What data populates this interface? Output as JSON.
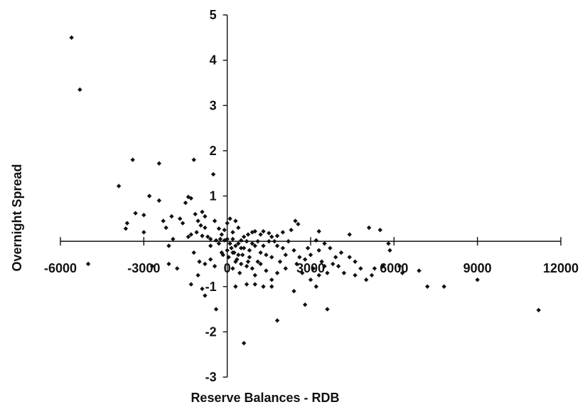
{
  "chart_data": {
    "type": "scatter",
    "title": "",
    "xlabel": "Reserve Balances - RDB",
    "ylabel": "Overnight Spread",
    "xlim": [
      -6000,
      12000
    ],
    "ylim": [
      -3,
      5
    ],
    "xticks": [
      "-6000",
      "-3000",
      "0",
      "3000",
      "6000",
      "9000",
      "12000"
    ],
    "yticks": [
      "-3",
      "-2",
      "-1",
      "0",
      "1",
      "2",
      "3",
      "4",
      "5"
    ],
    "grid": false,
    "legend": "none",
    "marker": "diamond",
    "color": "#111111",
    "points": [
      [
        -5600,
        4.5
      ],
      [
        -5300,
        3.35
      ],
      [
        -3400,
        1.8
      ],
      [
        -2450,
        1.72
      ],
      [
        -1200,
        1.8
      ],
      [
        -3900,
        1.22
      ],
      [
        -3600,
        0.4
      ],
      [
        -3650,
        0.28
      ],
      [
        -3300,
        0.62
      ],
      [
        -2800,
        1.0
      ],
      [
        -3000,
        0.58
      ],
      [
        -3000,
        0.2
      ],
      [
        -2450,
        0.9
      ],
      [
        -2300,
        0.45
      ],
      [
        -2000,
        0.55
      ],
      [
        -1700,
        0.5
      ],
      [
        -1500,
        0.85
      ],
      [
        -1400,
        0.98
      ],
      [
        -1300,
        0.95
      ],
      [
        -1150,
        0.6
      ],
      [
        -1050,
        0.45
      ],
      [
        -900,
        0.65
      ],
      [
        -800,
        0.55
      ],
      [
        -2200,
        0.3
      ],
      [
        -1600,
        0.4
      ],
      [
        -500,
        1.48
      ],
      [
        -450,
        0.45
      ],
      [
        -300,
        0.28
      ],
      [
        -200,
        0.15
      ],
      [
        -1300,
        0.15
      ],
      [
        -1100,
        0.2
      ],
      [
        -950,
        0.35
      ],
      [
        -800,
        0.3
      ],
      [
        -700,
        0.1
      ],
      [
        -600,
        0.05
      ],
      [
        -400,
        0.02
      ],
      [
        -300,
        -0.05
      ],
      [
        -250,
        0.05
      ],
      [
        -1200,
        -0.25
      ],
      [
        -1000,
        -0.45
      ],
      [
        -800,
        -0.5
      ],
      [
        -600,
        -0.4
      ],
      [
        -450,
        -0.55
      ],
      [
        -2100,
        -0.5
      ],
      [
        -1800,
        -0.6
      ],
      [
        -1300,
        -0.95
      ],
      [
        -1050,
        -0.75
      ],
      [
        -900,
        -1.05
      ],
      [
        -800,
        -1.2
      ],
      [
        -2700,
        -0.55
      ],
      [
        -400,
        -1.5
      ],
      [
        -1950,
        0.05
      ],
      [
        -1400,
        0.1
      ],
      [
        -900,
        0.12
      ],
      [
        -600,
        -0.1
      ],
      [
        -100,
        0.25
      ],
      [
        0,
        0.4
      ],
      [
        100,
        0.5
      ],
      [
        200,
        0.2
      ],
      [
        300,
        0.45
      ],
      [
        400,
        0.3
      ],
      [
        600,
        0.1
      ],
      [
        750,
        0.15
      ],
      [
        900,
        0.2
      ],
      [
        1000,
        0.22
      ],
      [
        1200,
        0.15
      ],
      [
        1300,
        0.22
      ],
      [
        1500,
        0.18
      ],
      [
        1600,
        0.1
      ],
      [
        1800,
        0.12
      ],
      [
        2000,
        0.2
      ],
      [
        2300,
        0.25
      ],
      [
        2450,
        0.45
      ],
      [
        2550,
        0.38
      ],
      [
        3300,
        0.22
      ],
      [
        3200,
        0.02
      ],
      [
        3500,
        -0.05
      ],
      [
        3700,
        -0.15
      ],
      [
        4400,
        0.15
      ],
      [
        5100,
        0.3
      ],
      [
        5500,
        0.25
      ],
      [
        5800,
        -0.05
      ],
      [
        5850,
        -0.2
      ],
      [
        0,
        0.05
      ],
      [
        100,
        -0.05
      ],
      [
        200,
        0.05
      ],
      [
        300,
        -0.1
      ],
      [
        400,
        -0.05
      ],
      [
        500,
        0.02
      ],
      [
        600,
        -0.15
      ],
      [
        700,
        0.0
      ],
      [
        800,
        -0.2
      ],
      [
        900,
        -0.05
      ],
      [
        1000,
        -0.1
      ],
      [
        1100,
        0.0
      ],
      [
        1200,
        -0.25
      ],
      [
        1300,
        -0.1
      ],
      [
        1400,
        -0.3
      ],
      [
        1500,
        0.0
      ],
      [
        1600,
        -0.35
      ],
      [
        1700,
        0.0
      ],
      [
        1800,
        -0.1
      ],
      [
        1900,
        -0.45
      ],
      [
        2000,
        -0.15
      ],
      [
        2100,
        -0.3
      ],
      [
        2200,
        0.0
      ],
      [
        2400,
        -0.2
      ],
      [
        2600,
        -0.35
      ],
      [
        2800,
        -0.4
      ],
      [
        3000,
        -0.3
      ],
      [
        3100,
        -0.6
      ],
      [
        3300,
        -0.2
      ],
      [
        3400,
        -0.45
      ],
      [
        3600,
        -0.7
      ],
      [
        3800,
        -0.5
      ],
      [
        4000,
        -0.55
      ],
      [
        4200,
        -0.7
      ],
      [
        4400,
        -0.35
      ],
      [
        4600,
        -0.75
      ],
      [
        4800,
        -0.6
      ],
      [
        5000,
        -0.85
      ],
      [
        5300,
        -0.6
      ],
      [
        5600,
        -0.55
      ],
      [
        6200,
        -0.55
      ],
      [
        6300,
        -0.7
      ],
      [
        200,
        -0.25
      ],
      [
        300,
        -0.45
      ],
      [
        400,
        -0.3
      ],
      [
        500,
        -0.5
      ],
      [
        700,
        -0.55
      ],
      [
        900,
        -0.6
      ],
      [
        1000,
        -0.75
      ],
      [
        1200,
        -0.5
      ],
      [
        1400,
        -0.65
      ],
      [
        1600,
        -0.85
      ],
      [
        1800,
        -0.7
      ],
      [
        2100,
        -0.6
      ],
      [
        2500,
        -0.5
      ],
      [
        2700,
        -0.7
      ],
      [
        3000,
        -0.85
      ],
      [
        3300,
        -0.75
      ],
      [
        3500,
        -0.55
      ],
      [
        3200,
        -1.0
      ],
      [
        2400,
        -1.1
      ],
      [
        2800,
        -1.4
      ],
      [
        3600,
        -1.5
      ],
      [
        1800,
        -1.75
      ],
      [
        600,
        -2.25
      ],
      [
        0,
        -0.2
      ],
      [
        150,
        -0.15
      ],
      [
        -100,
        0.02
      ],
      [
        -200,
        -0.25
      ],
      [
        200,
        -0.6
      ],
      [
        350,
        -0.4
      ],
      [
        450,
        -0.7
      ],
      [
        300,
        -1.0
      ],
      [
        700,
        -0.95
      ],
      [
        1000,
        -0.95
      ],
      [
        1300,
        -1.0
      ],
      [
        1600,
        -1.0
      ],
      [
        500,
        -0.15
      ],
      [
        800,
        -0.35
      ],
      [
        1100,
        -0.45
      ],
      [
        7200,
        -1.0
      ],
      [
        7800,
        -1.0
      ],
      [
        9000,
        -0.85
      ],
      [
        11200,
        -1.52
      ],
      [
        6900,
        -0.65
      ],
      [
        -5000,
        -0.5
      ],
      [
        -2100,
        -0.1
      ],
      [
        -150,
        -0.3
      ],
      [
        50,
        -0.35
      ],
      [
        250,
        -0.25
      ],
      [
        550,
        -0.3
      ],
      [
        750,
        -0.45
      ],
      [
        2900,
        -0.15
      ],
      [
        3900,
        -0.35
      ],
      [
        4100,
        -0.25
      ],
      [
        4600,
        -0.45
      ],
      [
        5200,
        -0.75
      ]
    ]
  }
}
